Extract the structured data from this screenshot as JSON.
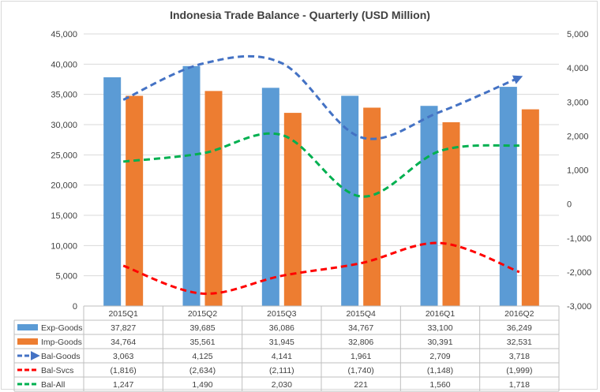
{
  "chart_data": {
    "type": "bar",
    "title": "Indonesia Trade Balance - Quarterly (USD Million)",
    "categories": [
      "2015Q1",
      "2015Q2",
      "2015Q3",
      "2015Q4",
      "2016Q1",
      "2016Q2"
    ],
    "ylim_left": [
      0,
      45000
    ],
    "yticks_left": [
      "0",
      "5,000",
      "10,000",
      "15,000",
      "20,000",
      "25,000",
      "30,000",
      "35,000",
      "40,000",
      "45,000"
    ],
    "ylim_right": [
      -3000,
      5000
    ],
    "yticks_right": [
      "-3,000",
      "-2,000",
      "-1,000",
      "0",
      "1,000",
      "2,000",
      "3,000",
      "4,000",
      "5,000"
    ],
    "grid": true,
    "legend_placement": "data-table",
    "series": [
      {
        "name": "Exp-Goods",
        "kind": "bar",
        "axis": "left",
        "color": "#5b9bd5",
        "values": [
          37827,
          39685,
          36086,
          34767,
          33100,
          36249
        ],
        "labels": [
          "37,827",
          "39,685",
          "36,086",
          "34,767",
          "33,100",
          "36,249"
        ]
      },
      {
        "name": "Imp-Goods",
        "kind": "bar",
        "axis": "left",
        "color": "#ed7d31",
        "values": [
          34764,
          35561,
          31945,
          32806,
          30391,
          32531
        ],
        "labels": [
          "34,764",
          "35,561",
          "31,945",
          "32,806",
          "30,391",
          "32,531"
        ]
      },
      {
        "name": "Bal-Goods",
        "kind": "line",
        "axis": "right",
        "color": "#4472c4",
        "style": "dashed-arrow",
        "values": [
          3063,
          4125,
          4141,
          1961,
          2709,
          3718
        ],
        "labels": [
          "3,063",
          "4,125",
          "4,141",
          "1,961",
          "2,709",
          "3,718"
        ]
      },
      {
        "name": "Bal-Svcs",
        "kind": "line",
        "axis": "right",
        "color": "#ff0000",
        "style": "dashed",
        "values": [
          -1816,
          -2634,
          -2111,
          -1740,
          -1148,
          -1999
        ],
        "labels": [
          "(1,816)",
          "(2,634)",
          "(2,111)",
          "(1,740)",
          "(1,148)",
          "(1,999)"
        ]
      },
      {
        "name": "Bal-All",
        "kind": "line",
        "axis": "right",
        "color": "#00b050",
        "style": "dashed",
        "values": [
          1247,
          1490,
          2030,
          221,
          1560,
          1718
        ],
        "labels": [
          "1,247",
          "1,490",
          "2,030",
          "221",
          "1,560",
          "1,718"
        ]
      }
    ]
  }
}
